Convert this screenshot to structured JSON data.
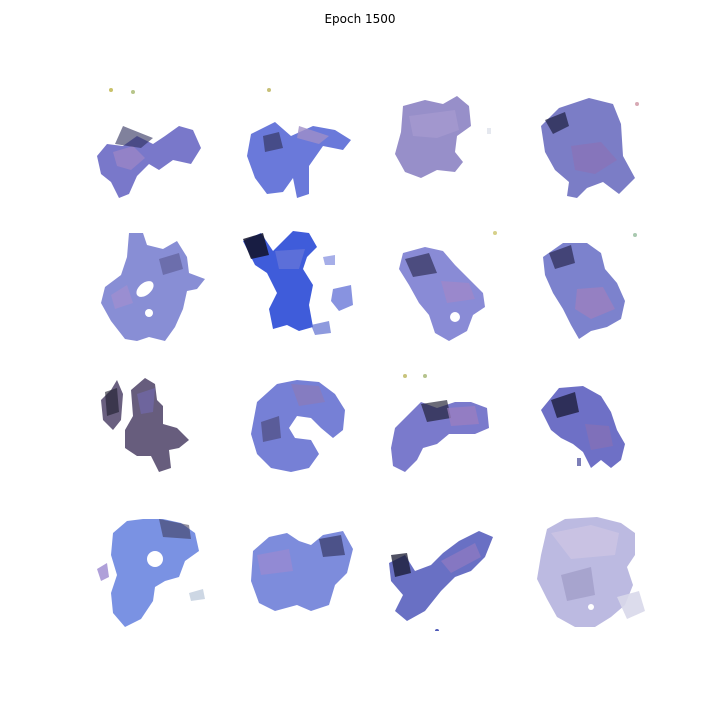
{
  "figure": {
    "title": "Epoch 1500"
  },
  "samples": [
    {
      "palette": [
        "#6a69c4",
        "#9a84c6",
        "#2b2d5a"
      ]
    },
    {
      "palette": [
        "#5a6ad6",
        "#9f8fc8",
        "#2e2f52"
      ]
    },
    {
      "palette": [
        "#8e86c4",
        "#a69ad0",
        "#4a4a6a"
      ]
    },
    {
      "palette": [
        "#6d6fc0",
        "#8a73b8",
        "#1e2040"
      ]
    },
    {
      "palette": [
        "#7b82d0",
        "#a38fcf",
        "#3a3460"
      ]
    },
    {
      "palette": [
        "#3553d8",
        "#6a78d8",
        "#121228"
      ]
    },
    {
      "palette": [
        "#7c7ed2",
        "#a087c8",
        "#2b2b50"
      ]
    },
    {
      "palette": [
        "#6e74c8",
        "#9b7fbf",
        "#2b2a52"
      ]
    },
    {
      "palette": [
        "#5a4f72",
        "#7068a8",
        "#1d1d2c"
      ]
    },
    {
      "palette": [
        "#6a75d2",
        "#8c7ab8",
        "#3a3050"
      ]
    },
    {
      "palette": [
        "#6f6fc8",
        "#9c7fc0",
        "#1c1c30"
      ]
    },
    {
      "palette": [
        "#5e61c0",
        "#8570b6",
        "#1a1a34"
      ]
    },
    {
      "palette": [
        "#6b86e0",
        "#9b88cf",
        "#3a3654"
      ]
    },
    {
      "palette": [
        "#6f7fd8",
        "#9a8ad2",
        "#2b2b52"
      ]
    },
    {
      "palette": [
        "#5960be",
        "#8c79c2",
        "#171830"
      ]
    },
    {
      "palette": [
        "#b6b4de",
        "#cfc6e4",
        "#8d8ab8"
      ]
    }
  ]
}
